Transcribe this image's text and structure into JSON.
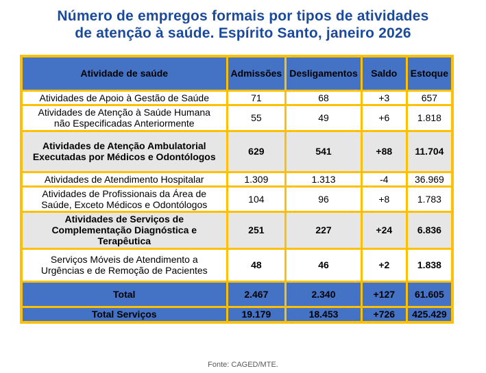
{
  "title": {
    "line1": "Número de empregos formais por tipos de atividades",
    "line2": "de atenção à saúde. Espírito Santo, janeiro 2026"
  },
  "colors": {
    "title_blue": "#1B4A9B",
    "header_blue": "#4472C4",
    "border_yellow": "#FFC000",
    "emphasis_gray": "#E7E6E6",
    "text_black": "#000000"
  },
  "table": {
    "headers": {
      "activity": "Atividade de saúde",
      "admissions": "Admissões",
      "dismissals": "Desligamentos",
      "balance": "Saldo",
      "stock": "Estoque"
    },
    "rows": [
      {
        "label": "Atividades de Apoio à Gestão de Saúde",
        "admissoes": "71",
        "desligamentos": "68",
        "saldo": "+3",
        "estoque": "657"
      },
      {
        "label": "Atividades de Atenção à Saúde Humana não Especificadas Anteriormente",
        "admissoes": "55",
        "desligamentos": "49",
        "saldo": "+6",
        "estoque": "1.818"
      },
      {
        "label": "Atividades de Atenção Ambulatorial Executadas por Médicos e Odontólogos",
        "admissoes": "629",
        "desligamentos": "541",
        "saldo": "+88",
        "estoque": "11.704"
      },
      {
        "label": "Atividades de Atendimento Hospitalar",
        "admissoes": "1.309",
        "desligamentos": "1.313",
        "saldo": "-4",
        "estoque": "36.969"
      },
      {
        "label": "Atividades de Profissionais da Área de Saúde, Exceto Médicos e Odontólogos",
        "admissoes": "104",
        "desligamentos": "96",
        "saldo": "+8",
        "estoque": "1.783"
      },
      {
        "label": "Atividades de Serviços de Complementação Diagnóstica e Terapêutica",
        "admissoes": "251",
        "desligamentos": "227",
        "saldo": "+24",
        "estoque": "6.836"
      },
      {
        "label": "Serviços Móveis de Atendimento a Urgências e de Remoção de Pacientes",
        "admissoes": "48",
        "desligamentos": "46",
        "saldo": "+2",
        "estoque": "1.838"
      },
      {
        "label": "Total",
        "admissoes": "2.467",
        "desligamentos": "2.340",
        "saldo": "+127",
        "estoque": "61.605"
      },
      {
        "label": "Total Serviços",
        "admissoes": "19.179",
        "desligamentos": "18.453",
        "saldo": "+726",
        "estoque": "425.429"
      }
    ]
  },
  "footer": {
    "source": "Fonte: CAGED/MTE."
  }
}
